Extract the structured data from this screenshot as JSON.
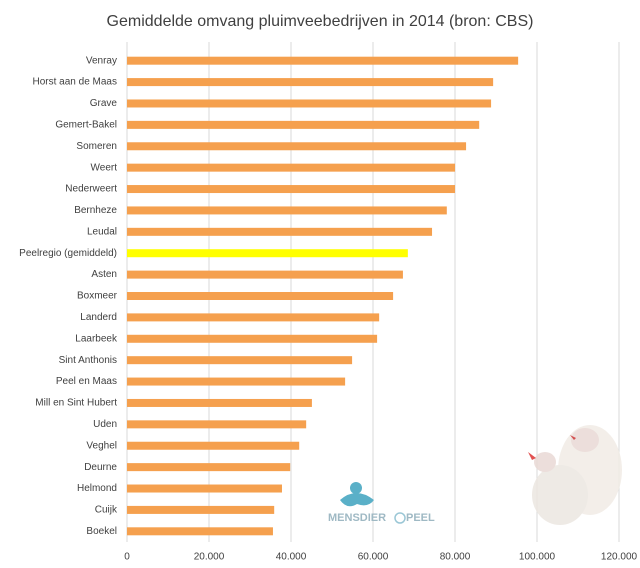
{
  "chart_data": {
    "type": "barh",
    "title": "Gemiddelde omvang pluimveebedrijven in 2014 (bron: CBS)",
    "categories": [
      "Venray",
      "Horst aan de Maas",
      "Grave",
      "Gemert-Bakel",
      "Someren",
      "Weert",
      "Nederweert",
      "Bernheze",
      "Leudal",
      "Peelregio (gemiddeld)",
      "Asten",
      "Boxmeer",
      "Landerd",
      "Laarbeek",
      "Sint Anthonis",
      "Peel en Maas",
      "Mill en Sint Hubert",
      "Uden",
      "Veghel",
      "Deurne",
      "Helmond",
      "Cuijk",
      "Boekel"
    ],
    "values": [
      95400,
      89300,
      88800,
      85900,
      82700,
      80000,
      80000,
      78000,
      74400,
      68500,
      67300,
      64900,
      61500,
      61000,
      54900,
      53200,
      45100,
      43700,
      42000,
      39800,
      37800,
      35900,
      35600
    ],
    "colors": [
      "#f5a04e",
      "#f5a04e",
      "#f5a04e",
      "#f5a04e",
      "#f5a04e",
      "#f5a04e",
      "#f5a04e",
      "#f5a04e",
      "#f5a04e",
      "#ffff00",
      "#f5a04e",
      "#f5a04e",
      "#f5a04e",
      "#f5a04e",
      "#f5a04e",
      "#f5a04e",
      "#f5a04e",
      "#f5a04e",
      "#f5a04e",
      "#f5a04e",
      "#f5a04e",
      "#f5a04e",
      "#f5a04e"
    ],
    "xlim": [
      0,
      120000
    ],
    "xticks": [
      0,
      {
        "value": 20000,
        "label": "20.000"
      },
      {
        "value": 40000,
        "label": "40.000"
      },
      {
        "value": 60000,
        "label": "60.000"
      },
      {
        "value": 80000,
        "label": "80.000"
      },
      {
        "value": 100000,
        "label": "100.000"
      },
      {
        "value": 120000,
        "label": "120.000"
      }
    ],
    "grid": true,
    "logo_parts": [
      "MENSDIER",
      "PEEL"
    ]
  }
}
